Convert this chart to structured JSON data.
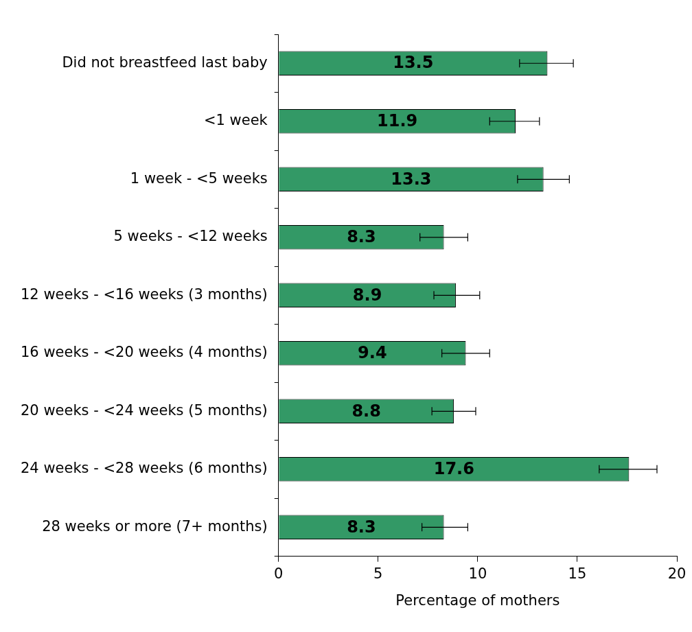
{
  "chart_data": {
    "type": "bar",
    "orientation": "horizontal",
    "xlabel": "Percentage of mothers",
    "categories": [
      "Did not breastfeed last baby",
      "<1 week",
      "1 week - <5 weeks",
      "5 weeks - <12 weeks",
      "12 weeks - <16 weeks (3 months)",
      "16 weeks - <20 weeks (4 months)",
      "20 weeks - <24 weeks (5 months)",
      "24 weeks - <28 weeks (6 months)",
      "28 weeks or more (7+ months)"
    ],
    "values": [
      13.5,
      11.9,
      13.3,
      8.3,
      8.9,
      9.4,
      8.8,
      17.6,
      8.3
    ],
    "errors": [
      [
        12.1,
        14.8
      ],
      [
        10.6,
        13.1
      ],
      [
        12.0,
        14.6
      ],
      [
        7.1,
        9.5
      ],
      [
        7.8,
        10.1
      ],
      [
        8.2,
        10.6
      ],
      [
        7.7,
        9.9
      ],
      [
        16.1,
        19.0
      ],
      [
        7.2,
        9.5
      ]
    ],
    "color": "#339966",
    "xlim": [
      0,
      20
    ],
    "xticks": [
      0,
      5,
      10,
      15,
      20
    ],
    "grid": false,
    "legend": false,
    "data_labels": true
  }
}
